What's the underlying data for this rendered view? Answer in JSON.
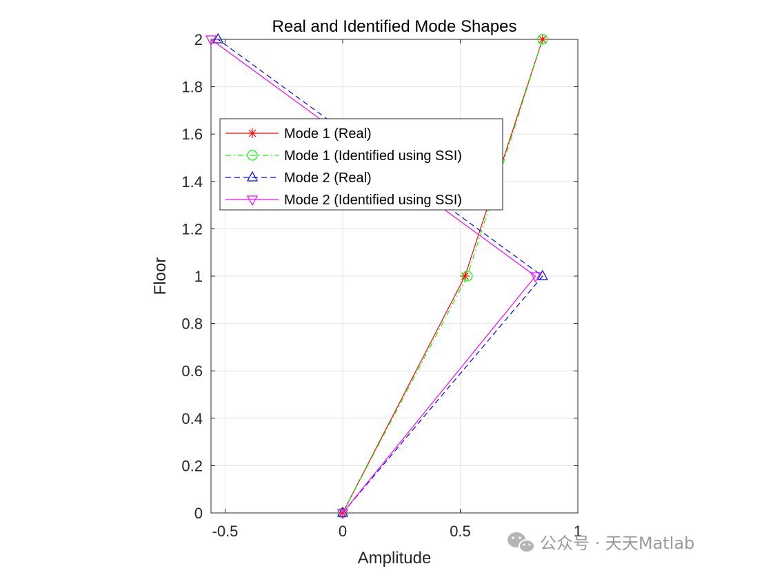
{
  "chart_data": {
    "type": "line",
    "title": "Real and Identified Mode Shapes",
    "xlabel": "Amplitude",
    "ylabel": "Floor",
    "xlim": [
      -0.56,
      1
    ],
    "ylim": [
      0,
      2
    ],
    "xticks": [
      -0.5,
      0,
      0.5,
      1
    ],
    "xtick_labels": [
      "-0.5",
      "0",
      "0.5",
      "1"
    ],
    "yticks": [
      0,
      0.2,
      0.4,
      0.6,
      0.8,
      1,
      1.2,
      1.4,
      1.6,
      1.8,
      2
    ],
    "ytick_labels": [
      "0",
      "0.2",
      "0.4",
      "0.6",
      "0.8",
      "1",
      "1.2",
      "1.4",
      "1.6",
      "1.8",
      "2"
    ],
    "grid": true,
    "legend_position": "upper-left",
    "series": [
      {
        "name": "Mode 1 (Real)",
        "x": [
          0,
          0.52,
          0.85
        ],
        "y": [
          0,
          1,
          2
        ],
        "color": "#ff0000",
        "dash": "solid",
        "marker": "asterisk"
      },
      {
        "name": "Mode 1 (Identified using SSI)",
        "x": [
          0,
          0.53,
          0.85
        ],
        "y": [
          0,
          1,
          2
        ],
        "color": "#00ff00",
        "dash": "dashdot",
        "marker": "circle"
      },
      {
        "name": "Mode 2 (Real)",
        "x": [
          0,
          0.85,
          -0.53
        ],
        "y": [
          0,
          1,
          2
        ],
        "color": "#0000ff",
        "dash": "dashed",
        "marker": "triangle-up"
      },
      {
        "name": "Mode 2 (Identified using SSI)",
        "x": [
          0,
          0.82,
          -0.56
        ],
        "y": [
          0,
          1,
          2
        ],
        "color": "#ff00ff",
        "dash": "solid",
        "marker": "triangle-down"
      }
    ]
  },
  "watermark": {
    "text": "公众号 · 天天Matlab",
    "icon": "wechat-icon"
  }
}
